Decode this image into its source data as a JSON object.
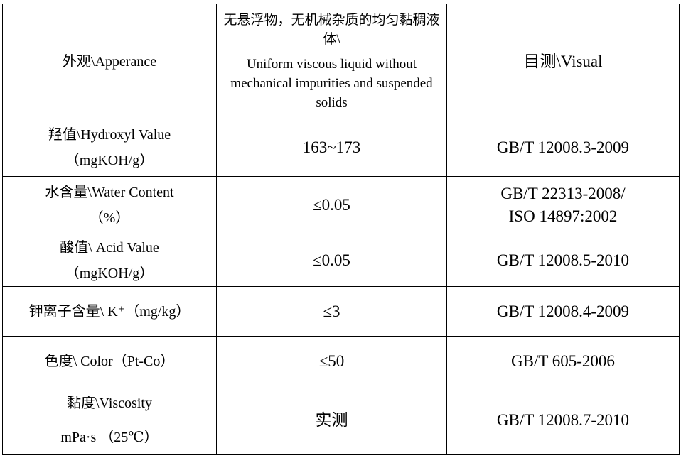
{
  "table": {
    "rows": [
      [
        [
          "外观\\Apperance"
        ],
        [
          "无悬浮物，无机械杂质的均匀黏稠液体\\",
          "Uniform viscous liquid without mechanical impurities and suspended solids"
        ],
        [
          "目测\\Visual"
        ]
      ],
      [
        [
          "羟值\\Hydroxyl Value",
          "（mgKOH/g）"
        ],
        [
          "163~173"
        ],
        [
          "GB/T 12008.3-2009"
        ]
      ],
      [
        [
          "水含量\\Water Content",
          "（%）"
        ],
        [
          "≤0.05"
        ],
        [
          "GB/T 22313-2008/",
          "ISO 14897:2002"
        ]
      ],
      [
        [
          "酸值\\ Acid Value",
          "（mgKOH/g）"
        ],
        [
          "≤0.05"
        ],
        [
          "GB/T 12008.5-2010"
        ]
      ],
      [
        [
          "钾离子含量\\ K⁺（mg/kg）"
        ],
        [
          "≤3"
        ],
        [
          "GB/T 12008.4-2009"
        ]
      ],
      [
        [
          "色度\\ Color（Pt-Co）"
        ],
        [
          "≤50"
        ],
        [
          "GB/T 605-2006"
        ]
      ],
      [
        [
          "黏度\\Viscosity",
          "mPa·s （25℃）"
        ],
        [
          "实测"
        ],
        [
          "GB/T 12008.7-2010"
        ]
      ]
    ]
  }
}
